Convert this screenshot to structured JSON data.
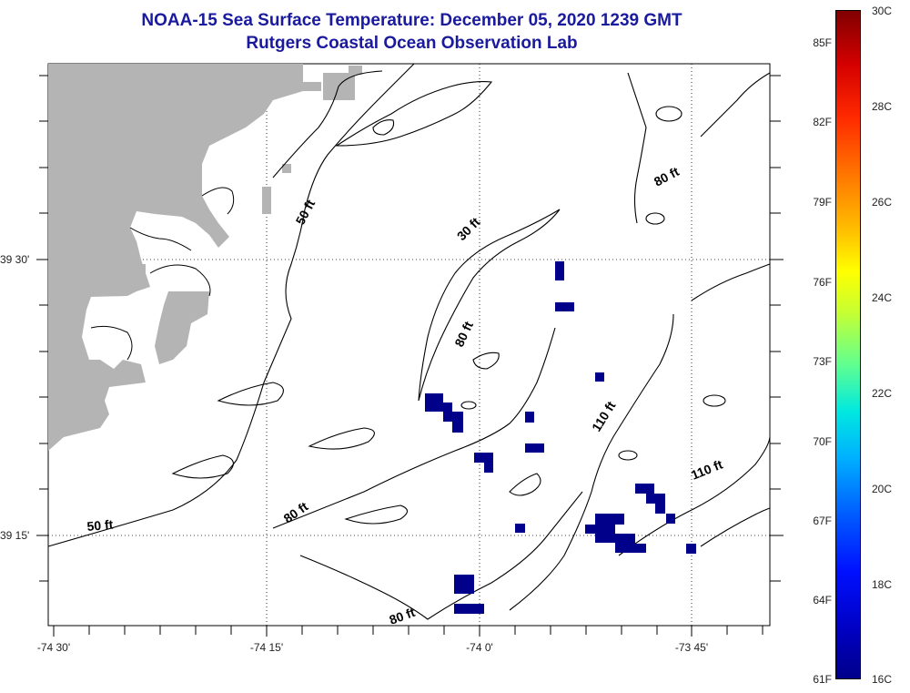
{
  "title": {
    "line1": "NOAA-15 Sea Surface Temperature:  December 05, 2020 1239 GMT",
    "line2": "Rutgers Coastal Ocean Observation Lab"
  },
  "colors": {
    "title": "#1a1a9e",
    "land": "#b4b4b4",
    "sst_cold": "#00008a",
    "contour": "#000000"
  },
  "axes": {
    "y_labels": [
      "39 30'",
      "39 15'"
    ],
    "x_labels": [
      "-74 30'",
      "-74 15'",
      "-74 0'",
      "-73 45'"
    ]
  },
  "contour_labels": [
    "50 ft",
    "50 ft",
    "30 ft",
    "80 ft",
    "80 ft",
    "80 ft",
    "80 ft",
    "110 ft",
    "110 ft"
  ],
  "colorbar": {
    "fahrenheit": [
      "85F",
      "82F",
      "79F",
      "76F",
      "73F",
      "70F",
      "67F",
      "64F",
      "61F"
    ],
    "celsius": [
      "30C",
      "28C",
      "26C",
      "24C",
      "22C",
      "20C",
      "18C",
      "16C"
    ]
  }
}
